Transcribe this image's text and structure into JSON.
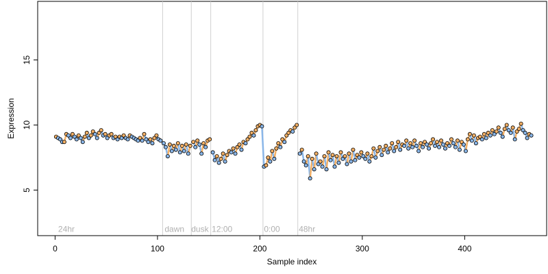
{
  "chart_data": {
    "type": "scatter",
    "xlabel": "Sample index",
    "ylabel": "Expression",
    "xlim": [
      -17,
      480
    ],
    "ylim": [
      1.5,
      19.5
    ],
    "x_ticks": [
      0,
      100,
      200,
      300,
      400
    ],
    "y_ticks": [
      5,
      10,
      15
    ],
    "grid": false,
    "section_lines": [
      105,
      133,
      152,
      203,
      237
    ],
    "section_labels": [
      {
        "x": 3,
        "text": "24hr"
      },
      {
        "x": 107,
        "text": "dawn"
      },
      {
        "x": 133,
        "text": "dusk"
      },
      {
        "x": 153,
        "text": "12:00"
      },
      {
        "x": 204,
        "text": "0:00"
      },
      {
        "x": 238,
        "text": "48hr"
      }
    ],
    "label_y": 2.0,
    "colors": {
      "line": "#cfcfcf",
      "label": "#b0b0b0",
      "orange": "#f3b066",
      "blue": "#8ab6e8",
      "point_stroke": "#000000"
    },
    "series": [
      {
        "values": [
          {
            "x": 1,
            "y": 9.1
          },
          {
            "x": 3,
            "y": 9.0
          },
          {
            "x": 5,
            "y": 8.9
          },
          {
            "x": 7,
            "y": 8.7
          },
          {
            "x": 9,
            "y": 8.7
          },
          {
            "x": 11,
            "y": 9.3
          },
          {
            "x": 13,
            "y": 9.2
          },
          {
            "x": 15,
            "y": 9.0
          },
          {
            "x": 17,
            "y": 9.3
          },
          {
            "x": 19,
            "y": 9.1
          },
          {
            "x": 21,
            "y": 8.9
          },
          {
            "x": 23,
            "y": 9.2
          },
          {
            "x": 25,
            "y": 9.0
          },
          {
            "x": 27,
            "y": 8.7
          },
          {
            "x": 29,
            "y": 9.1
          },
          {
            "x": 31,
            "y": 9.4
          },
          {
            "x": 33,
            "y": 9.0
          },
          {
            "x": 35,
            "y": 9.2
          },
          {
            "x": 37,
            "y": 9.5
          },
          {
            "x": 39,
            "y": 9.3
          },
          {
            "x": 41,
            "y": 9.0
          },
          {
            "x": 43,
            "y": 9.4
          },
          {
            "x": 45,
            "y": 9.6
          },
          {
            "x": 47,
            "y": 9.2
          },
          {
            "x": 49,
            "y": 9.3
          },
          {
            "x": 51,
            "y": 9.0
          },
          {
            "x": 53,
            "y": 9.2
          },
          {
            "x": 55,
            "y": 9.3
          },
          {
            "x": 57,
            "y": 9.0
          },
          {
            "x": 59,
            "y": 9.1
          },
          {
            "x": 61,
            "y": 8.9
          },
          {
            "x": 63,
            "y": 9.1
          },
          {
            "x": 65,
            "y": 9.0
          },
          {
            "x": 67,
            "y": 9.2
          },
          {
            "x": 69,
            "y": 9.0
          },
          {
            "x": 71,
            "y": 8.9
          },
          {
            "x": 73,
            "y": 9.2
          },
          {
            "x": 75,
            "y": 9.1
          },
          {
            "x": 77,
            "y": 9.0
          },
          {
            "x": 79,
            "y": 8.9
          },
          {
            "x": 81,
            "y": 8.8
          },
          {
            "x": 83,
            "y": 9.0
          },
          {
            "x": 85,
            "y": 8.8
          },
          {
            "x": 87,
            "y": 9.3
          },
          {
            "x": 89,
            "y": 8.9
          },
          {
            "x": 91,
            "y": 8.7
          },
          {
            "x": 93,
            "y": 8.9
          },
          {
            "x": 95,
            "y": 8.6
          },
          {
            "x": 97,
            "y": 9.0
          },
          {
            "x": 99,
            "y": 9.2
          },
          {
            "x": 101,
            "y": 8.9
          },
          {
            "x": 103,
            "y": 8.8
          },
          {
            "x": 106,
            "y": 8.6
          },
          {
            "x": 108,
            "y": 8.3
          },
          {
            "x": 110,
            "y": 7.6
          },
          {
            "x": 112,
            "y": 8.5
          },
          {
            "x": 114,
            "y": 8.0
          },
          {
            "x": 116,
            "y": 8.4
          },
          {
            "x": 118,
            "y": 8.1
          },
          {
            "x": 120,
            "y": 8.6
          },
          {
            "x": 122,
            "y": 7.9
          },
          {
            "x": 124,
            "y": 8.4
          },
          {
            "x": 126,
            "y": 8.0
          },
          {
            "x": 128,
            "y": 8.5
          },
          {
            "x": 130,
            "y": 7.8
          },
          {
            "x": 132,
            "y": 8.4
          },
          {
            "x": 135,
            "y": 8.7
          },
          {
            "x": 137,
            "y": 8.3
          },
          {
            "x": 139,
            "y": 8.8
          },
          {
            "x": 141,
            "y": 8.5
          },
          {
            "x": 143,
            "y": 7.8
          },
          {
            "x": 145,
            "y": 8.6
          },
          {
            "x": 147,
            "y": 8.3
          },
          {
            "x": 149,
            "y": 8.8
          },
          {
            "x": 151,
            "y": 8.9
          },
          {
            "x": 154,
            "y": 7.9
          },
          {
            "x": 156,
            "y": 7.3
          },
          {
            "x": 158,
            "y": 7.6
          },
          {
            "x": 160,
            "y": 7.1
          },
          {
            "x": 162,
            "y": 7.4
          },
          {
            "x": 164,
            "y": 7.8
          },
          {
            "x": 166,
            "y": 7.2
          },
          {
            "x": 168,
            "y": 7.7
          },
          {
            "x": 170,
            "y": 8.0
          },
          {
            "x": 172,
            "y": 7.9
          },
          {
            "x": 174,
            "y": 8.2
          },
          {
            "x": 176,
            "y": 7.8
          },
          {
            "x": 178,
            "y": 8.3
          },
          {
            "x": 180,
            "y": 8.5
          },
          {
            "x": 182,
            "y": 8.1
          },
          {
            "x": 184,
            "y": 8.7
          },
          {
            "x": 186,
            "y": 8.6
          },
          {
            "x": 188,
            "y": 8.9
          },
          {
            "x": 190,
            "y": 9.1
          },
          {
            "x": 192,
            "y": 9.4
          },
          {
            "x": 194,
            "y": 9.2
          },
          {
            "x": 196,
            "y": 9.6
          },
          {
            "x": 198,
            "y": 9.9
          },
          {
            "x": 200,
            "y": 10.0
          },
          {
            "x": 202,
            "y": 9.9
          },
          {
            "x": 204,
            "y": 6.8
          },
          {
            "x": 206,
            "y": 6.9
          },
          {
            "x": 208,
            "y": 7.5
          },
          {
            "x": 210,
            "y": 7.2
          },
          {
            "x": 212,
            "y": 8.0
          },
          {
            "x": 214,
            "y": 7.4
          },
          {
            "x": 216,
            "y": 8.2
          },
          {
            "x": 218,
            "y": 8.6
          },
          {
            "x": 220,
            "y": 8.3
          },
          {
            "x": 222,
            "y": 8.9
          },
          {
            "x": 224,
            "y": 8.7
          },
          {
            "x": 226,
            "y": 9.2
          },
          {
            "x": 228,
            "y": 9.4
          },
          {
            "x": 230,
            "y": 9.6
          },
          {
            "x": 232,
            "y": 9.5
          },
          {
            "x": 234,
            "y": 9.8
          },
          {
            "x": 236,
            "y": 10.0
          },
          {
            "x": 239,
            "y": 7.8
          },
          {
            "x": 241,
            "y": 8.1
          },
          {
            "x": 243,
            "y": 7.2
          },
          {
            "x": 245,
            "y": 6.9
          },
          {
            "x": 247,
            "y": 7.6
          },
          {
            "x": 249,
            "y": 5.9
          },
          {
            "x": 251,
            "y": 7.4
          },
          {
            "x": 253,
            "y": 6.6
          },
          {
            "x": 255,
            "y": 7.8
          },
          {
            "x": 257,
            "y": 7.0
          },
          {
            "x": 259,
            "y": 7.2
          },
          {
            "x": 261,
            "y": 6.8
          },
          {
            "x": 263,
            "y": 7.6
          },
          {
            "x": 265,
            "y": 6.6
          },
          {
            "x": 267,
            "y": 7.9
          },
          {
            "x": 269,
            "y": 7.3
          },
          {
            "x": 271,
            "y": 7.7
          },
          {
            "x": 273,
            "y": 6.8
          },
          {
            "x": 275,
            "y": 7.6
          },
          {
            "x": 277,
            "y": 7.1
          },
          {
            "x": 279,
            "y": 7.9
          },
          {
            "x": 281,
            "y": 7.4
          },
          {
            "x": 283,
            "y": 7.6
          },
          {
            "x": 285,
            "y": 7.0
          },
          {
            "x": 287,
            "y": 7.8
          },
          {
            "x": 289,
            "y": 7.2
          },
          {
            "x": 291,
            "y": 8.1
          },
          {
            "x": 293,
            "y": 7.3
          },
          {
            "x": 295,
            "y": 7.7
          },
          {
            "x": 297,
            "y": 7.5
          },
          {
            "x": 299,
            "y": 7.9
          },
          {
            "x": 301,
            "y": 7.6
          },
          {
            "x": 303,
            "y": 7.4
          },
          {
            "x": 305,
            "y": 7.8
          },
          {
            "x": 307,
            "y": 7.2
          },
          {
            "x": 309,
            "y": 7.6
          },
          {
            "x": 311,
            "y": 8.2
          },
          {
            "x": 313,
            "y": 7.5
          },
          {
            "x": 315,
            "y": 8.0
          },
          {
            "x": 317,
            "y": 8.3
          },
          {
            "x": 319,
            "y": 7.7
          },
          {
            "x": 321,
            "y": 8.1
          },
          {
            "x": 323,
            "y": 8.4
          },
          {
            "x": 325,
            "y": 7.9
          },
          {
            "x": 327,
            "y": 8.2
          },
          {
            "x": 329,
            "y": 8.6
          },
          {
            "x": 331,
            "y": 8.0
          },
          {
            "x": 333,
            "y": 8.3
          },
          {
            "x": 335,
            "y": 8.7
          },
          {
            "x": 337,
            "y": 8.1
          },
          {
            "x": 339,
            "y": 8.5
          },
          {
            "x": 341,
            "y": 8.4
          },
          {
            "x": 343,
            "y": 8.8
          },
          {
            "x": 345,
            "y": 8.2
          },
          {
            "x": 347,
            "y": 8.6
          },
          {
            "x": 349,
            "y": 8.3
          },
          {
            "x": 351,
            "y": 8.8
          },
          {
            "x": 353,
            "y": 8.4
          },
          {
            "x": 355,
            "y": 8.0
          },
          {
            "x": 357,
            "y": 8.6
          },
          {
            "x": 359,
            "y": 8.3
          },
          {
            "x": 361,
            "y": 8.7
          },
          {
            "x": 363,
            "y": 8.5
          },
          {
            "x": 365,
            "y": 8.2
          },
          {
            "x": 367,
            "y": 8.6
          },
          {
            "x": 369,
            "y": 8.9
          },
          {
            "x": 371,
            "y": 8.4
          },
          {
            "x": 373,
            "y": 8.7
          },
          {
            "x": 375,
            "y": 8.3
          },
          {
            "x": 377,
            "y": 8.8
          },
          {
            "x": 379,
            "y": 8.5
          },
          {
            "x": 381,
            "y": 8.2
          },
          {
            "x": 383,
            "y": 8.6
          },
          {
            "x": 385,
            "y": 8.4
          },
          {
            "x": 387,
            "y": 8.9
          },
          {
            "x": 389,
            "y": 8.6
          },
          {
            "x": 391,
            "y": 8.3
          },
          {
            "x": 393,
            "y": 8.8
          },
          {
            "x": 395,
            "y": 8.1
          },
          {
            "x": 397,
            "y": 8.7
          },
          {
            "x": 399,
            "y": 8.5
          },
          {
            "x": 401,
            "y": 8.0
          },
          {
            "x": 403,
            "y": 8.9
          },
          {
            "x": 405,
            "y": 9.3
          },
          {
            "x": 407,
            "y": 8.8
          },
          {
            "x": 409,
            "y": 9.2
          },
          {
            "x": 411,
            "y": 8.6
          },
          {
            "x": 413,
            "y": 9.0
          },
          {
            "x": 415,
            "y": 9.1
          },
          {
            "x": 417,
            "y": 8.9
          },
          {
            "x": 419,
            "y": 9.3
          },
          {
            "x": 421,
            "y": 9.0
          },
          {
            "x": 423,
            "y": 9.4
          },
          {
            "x": 425,
            "y": 9.2
          },
          {
            "x": 427,
            "y": 9.6
          },
          {
            "x": 429,
            "y": 9.3
          },
          {
            "x": 431,
            "y": 9.5
          },
          {
            "x": 433,
            "y": 9.8
          },
          {
            "x": 435,
            "y": 9.4
          },
          {
            "x": 437,
            "y": 9.1
          },
          {
            "x": 439,
            "y": 9.7
          },
          {
            "x": 441,
            "y": 10.0
          },
          {
            "x": 443,
            "y": 9.6
          },
          {
            "x": 445,
            "y": 9.4
          },
          {
            "x": 447,
            "y": 9.8
          },
          {
            "x": 449,
            "y": 8.9
          },
          {
            "x": 451,
            "y": 9.5
          },
          {
            "x": 453,
            "y": 9.7
          },
          {
            "x": 455,
            "y": 10.1
          },
          {
            "x": 457,
            "y": 9.6
          },
          {
            "x": 459,
            "y": 9.4
          },
          {
            "x": 461,
            "y": 9.0
          },
          {
            "x": 463,
            "y": 9.3
          },
          {
            "x": 465,
            "y": 9.2
          }
        ]
      }
    ]
  }
}
